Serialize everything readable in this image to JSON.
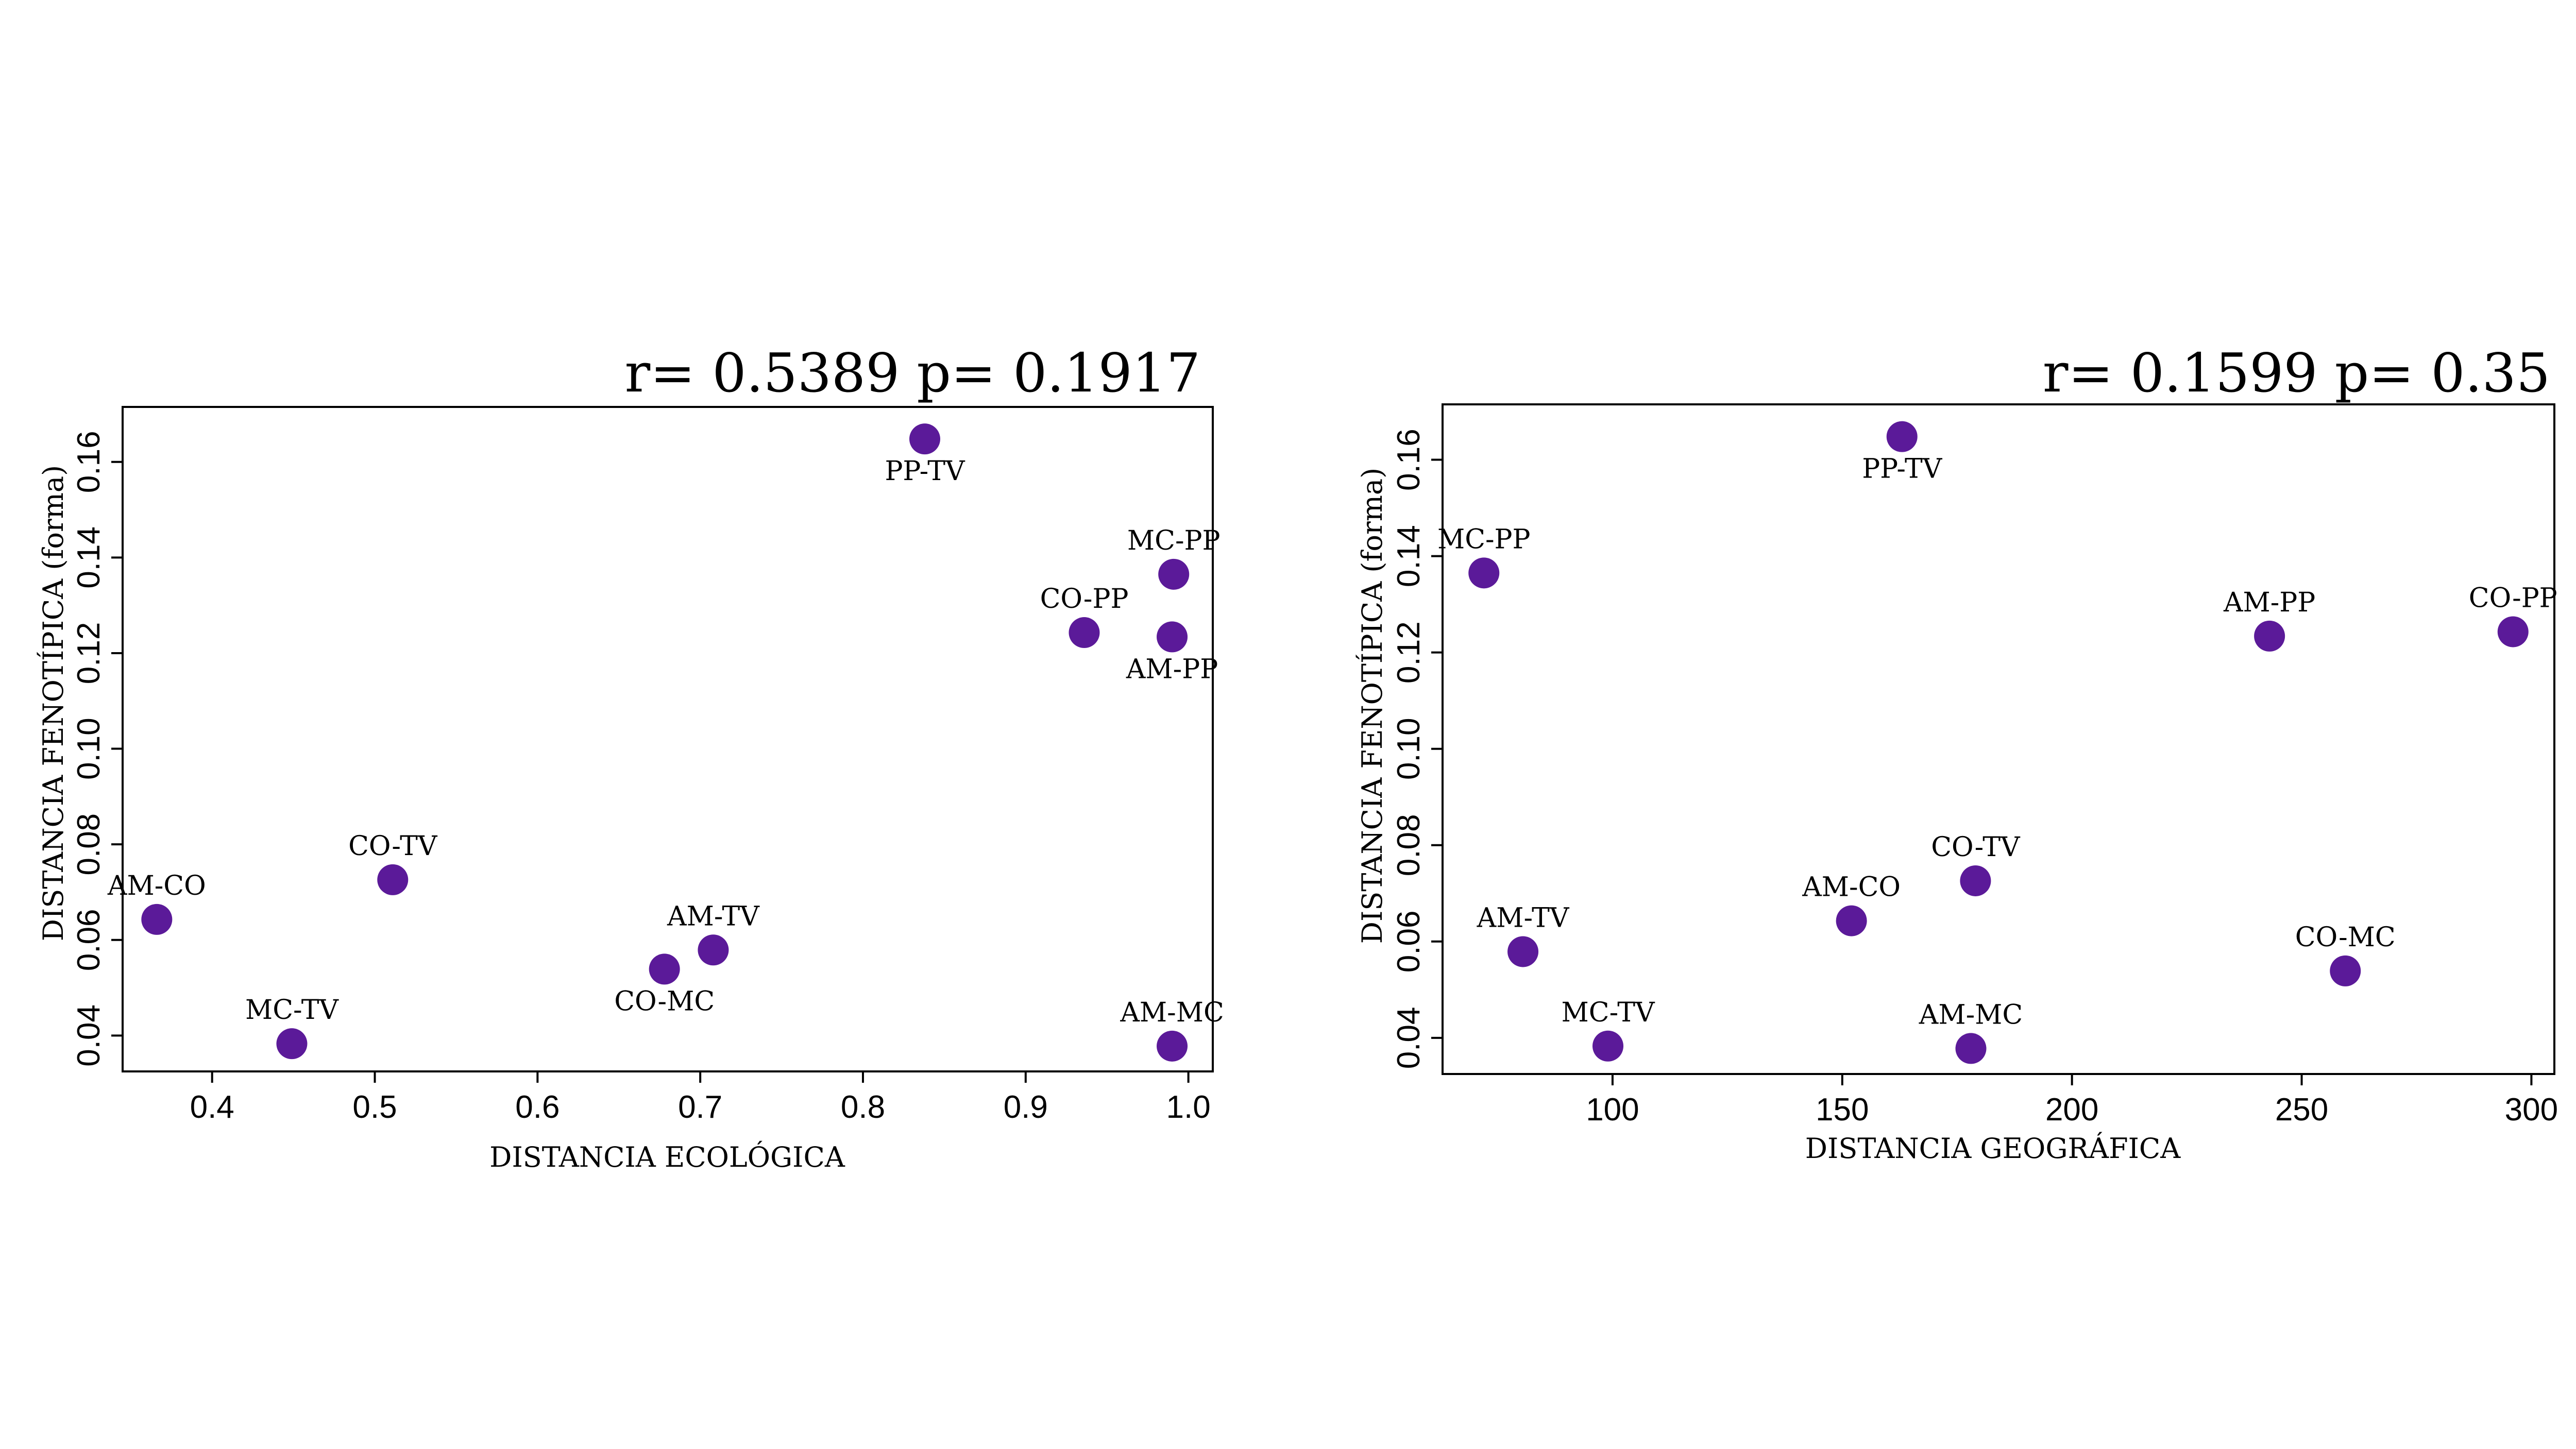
{
  "point_color": "#5b1a99",
  "chart_data": [
    {
      "type": "scatter",
      "title": "r= 0.5389 p= 0.1917",
      "xlabel": "DISTANCIA ECOLÓGICA",
      "ylabel": "DISTANCIA FENOTÍPICA (forma)",
      "xlim": [
        0.345,
        1.015
      ],
      "ylim": [
        0.0325,
        0.1715
      ],
      "x_ticks": [
        0.4,
        0.5,
        0.6,
        0.7,
        0.8,
        0.9,
        1.0
      ],
      "x_tick_labels": [
        "0.4",
        "0.5",
        "0.6",
        "0.7",
        "0.8",
        "0.9",
        "1.0"
      ],
      "y_ticks": [
        0.04,
        0.06,
        0.08,
        0.1,
        0.12,
        0.14,
        0.16
      ],
      "y_tick_labels": [
        "0.04",
        "0.06",
        "0.08",
        "0.10",
        "0.12",
        "0.14",
        "0.16"
      ],
      "grid": false,
      "points": [
        {
          "label": "AM-CO",
          "x": 0.366,
          "y": 0.0643,
          "label_pos": "above"
        },
        {
          "label": "MC-TV",
          "x": 0.449,
          "y": 0.0383,
          "label_pos": "above"
        },
        {
          "label": "CO-TV",
          "x": 0.511,
          "y": 0.0726,
          "label_pos": "above"
        },
        {
          "label": "CO-MC",
          "x": 0.678,
          "y": 0.0539,
          "label_pos": "below"
        },
        {
          "label": "AM-TV",
          "x": 0.708,
          "y": 0.0579,
          "label_pos": "above"
        },
        {
          "label": "PP-TV",
          "x": 0.838,
          "y": 0.1648,
          "label_pos": "below"
        },
        {
          "label": "CO-PP",
          "x": 0.936,
          "y": 0.1243,
          "label_pos": "above"
        },
        {
          "label": "MC-PP",
          "x": 0.991,
          "y": 0.1365,
          "label_pos": "above"
        },
        {
          "label": "AM-PP",
          "x": 0.99,
          "y": 0.1234,
          "label_pos": "below"
        },
        {
          "label": "AM-MC",
          "x": 0.99,
          "y": 0.0378,
          "label_pos": "above"
        }
      ]
    },
    {
      "type": "scatter",
      "title": "r= 0.1599 p= 0.35",
      "xlabel": "DISTANCIA GEOGRÁFICA",
      "ylabel": "DISTANCIA FENOTÍPICA (forma)",
      "xlim": [
        63,
        305
      ],
      "ylim": [
        0.0325,
        0.1715
      ],
      "x_ticks": [
        100,
        150,
        200,
        250,
        300
      ],
      "x_tick_labels": [
        "100",
        "150",
        "200",
        "250",
        "300"
      ],
      "y_ticks": [
        0.04,
        0.06,
        0.08,
        0.1,
        0.12,
        0.14,
        0.16
      ],
      "y_tick_labels": [
        "0.04",
        "0.06",
        "0.08",
        "0.10",
        "0.12",
        "0.14",
        "0.16"
      ],
      "grid": false,
      "points": [
        {
          "label": "MC-PP",
          "x": 72,
          "y": 0.1365,
          "label_pos": "above"
        },
        {
          "label": "AM-TV",
          "x": 80.5,
          "y": 0.0579,
          "label_pos": "above"
        },
        {
          "label": "MC-TV",
          "x": 99,
          "y": 0.0383,
          "label_pos": "above"
        },
        {
          "label": "AM-CO",
          "x": 152,
          "y": 0.0643,
          "label_pos": "above"
        },
        {
          "label": "PP-TV",
          "x": 163,
          "y": 0.1648,
          "label_pos": "below"
        },
        {
          "label": "AM-MC",
          "x": 178,
          "y": 0.0378,
          "label_pos": "above"
        },
        {
          "label": "CO-TV",
          "x": 179,
          "y": 0.0726,
          "label_pos": "above"
        },
        {
          "label": "AM-PP",
          "x": 243,
          "y": 0.1234,
          "label_pos": "above"
        },
        {
          "label": "CO-MC",
          "x": 259.5,
          "y": 0.0539,
          "label_pos": "above"
        },
        {
          "label": "CO-PP",
          "x": 296,
          "y": 0.1243,
          "label_pos": "above"
        }
      ]
    }
  ]
}
